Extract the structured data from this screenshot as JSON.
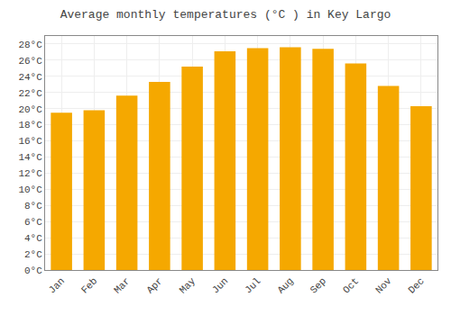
{
  "chart_data": {
    "type": "bar",
    "title": "Average monthly temperatures (°C ) in Key Largo",
    "categories": [
      "Jan",
      "Feb",
      "Mar",
      "Apr",
      "May",
      "Jun",
      "Jul",
      "Aug",
      "Sep",
      "Oct",
      "Nov",
      "Dec"
    ],
    "values": [
      19.5,
      19.8,
      21.6,
      23.3,
      25.2,
      27.1,
      27.5,
      27.6,
      27.4,
      25.6,
      22.8,
      20.3
    ],
    "color": "#F5A800",
    "ylim": [
      0,
      29
    ],
    "yticks": [
      {
        "value": 0,
        "label": "0°C"
      },
      {
        "value": 2,
        "label": "2°C"
      },
      {
        "value": 4,
        "label": "4°C"
      },
      {
        "value": 6,
        "label": "6°C"
      },
      {
        "value": 8,
        "label": "8°C"
      },
      {
        "value": 10,
        "label": "10°C"
      },
      {
        "value": 12,
        "label": "12°C"
      },
      {
        "value": 14,
        "label": "14°C"
      },
      {
        "value": 16,
        "label": "16°C"
      },
      {
        "value": 18,
        "label": "18°C"
      },
      {
        "value": 20,
        "label": "20°C"
      },
      {
        "value": 22,
        "label": "22°C"
      },
      {
        "value": 24,
        "label": "24°C"
      },
      {
        "value": 26,
        "label": "26°C"
      },
      {
        "value": 28,
        "label": "28°C"
      }
    ],
    "grid": true
  }
}
